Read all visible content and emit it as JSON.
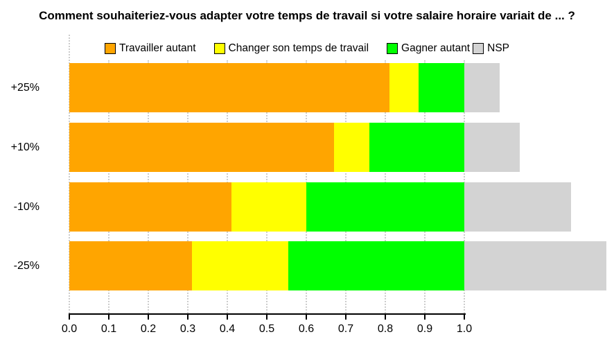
{
  "chart_data": {
    "type": "bar",
    "orientation": "horizontal",
    "stacked": true,
    "title": "Comment souhaiteriez-vous adapter votre temps de travail si votre salaire horaire variait de ... ?",
    "categories": [
      "+25%",
      "+10%",
      "-10%",
      "-25%"
    ],
    "series": [
      {
        "name": "Travailler autant",
        "color": "#FFA500",
        "values": [
          0.81,
          0.67,
          0.41,
          0.31
        ]
      },
      {
        "name": "Changer son temps de travail",
        "color": "#FFFF00",
        "values": [
          0.075,
          0.09,
          0.19,
          0.245
        ]
      },
      {
        "name": "Gagner autant",
        "color": "#00FF00",
        "values": [
          0.115,
          0.24,
          0.4,
          0.445
        ]
      },
      {
        "name": "NSP",
        "color": "#D3D3D3",
        "values": [
          0.09,
          0.14,
          0.27,
          0.36
        ]
      }
    ],
    "x_ticks": [
      "0.0",
      "0.1",
      "0.2",
      "0.3",
      "0.4",
      "0.5",
      "0.6",
      "0.7",
      "0.8",
      "0.9",
      "1.0"
    ],
    "xlim": [
      0.0,
      1.38
    ],
    "xlabel": "",
    "ylabel": "",
    "grid": "vertical-dotted",
    "legend_position": "top"
  },
  "colors": {
    "background": "#FFFFFF",
    "grid": "#CCCCCC",
    "axis": "#000000",
    "text": "#000000"
  }
}
